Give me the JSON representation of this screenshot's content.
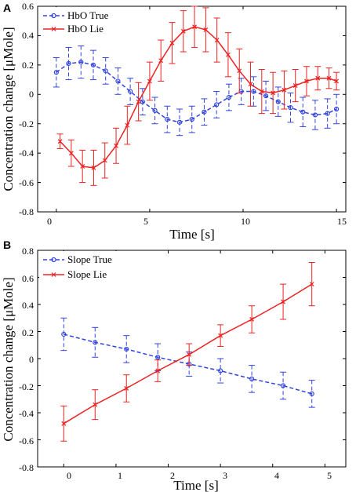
{
  "chart_data": [
    {
      "type": "line",
      "panel_label": "A",
      "xlabel": "Time [s]",
      "ylabel": "Concentration change [μMole]",
      "xlim": [
        -1,
        15.5
      ],
      "ylim": [
        -0.8,
        0.6
      ],
      "xticks": [
        0,
        5,
        10,
        15
      ],
      "yticks": [
        -0.8,
        -0.6,
        -0.4,
        -0.2,
        0,
        0.2,
        0.4,
        0.6
      ],
      "xtick_labels": [
        "0",
        "5",
        "10",
        "15"
      ],
      "ytick_labels": [
        "-0.8",
        "-0.6",
        "-0.4",
        "-0.2",
        "0",
        "0.2",
        "0.4",
        "0.6"
      ],
      "grid": false,
      "legend_position": "top-left",
      "series": [
        {
          "name": "HbO True",
          "color": "#3344dd",
          "line_style": "dashed",
          "marker": "circle",
          "x": [
            0,
            0.66,
            1.32,
            1.98,
            2.64,
            3.3,
            3.96,
            4.62,
            5.28,
            5.94,
            6.6,
            7.26,
            7.92,
            8.58,
            9.24,
            9.9,
            10.56,
            11.22,
            11.88,
            12.54,
            13.2,
            13.86,
            14.52,
            15
          ],
          "y": [
            0.15,
            0.21,
            0.22,
            0.2,
            0.16,
            0.09,
            0.02,
            -0.05,
            -0.11,
            -0.17,
            -0.19,
            -0.17,
            -0.12,
            -0.07,
            -0.02,
            0.02,
            0.02,
            -0.01,
            -0.05,
            -0.09,
            -0.12,
            -0.14,
            -0.13,
            -0.1
          ],
          "error": [
            0.1,
            0.11,
            0.11,
            0.1,
            0.09,
            0.09,
            0.09,
            0.09,
            0.09,
            0.09,
            0.09,
            0.09,
            0.09,
            0.09,
            0.09,
            0.09,
            0.1,
            0.1,
            0.1,
            0.1,
            0.1,
            0.1,
            0.1,
            0.1
          ]
        },
        {
          "name": "HbO Lie",
          "color": "#ee2222",
          "line_style": "solid",
          "marker": "x",
          "x": [
            0.2,
            0.8,
            1.4,
            2.0,
            2.6,
            3.2,
            3.8,
            4.4,
            5.0,
            5.6,
            6.2,
            6.8,
            7.4,
            8.0,
            8.6,
            9.2,
            9.8,
            10.4,
            11.0,
            11.6,
            12.2,
            12.8,
            13.4,
            14.0,
            14.6,
            15.0
          ],
          "y": [
            -0.32,
            -0.4,
            -0.49,
            -0.5,
            -0.45,
            -0.35,
            -0.21,
            -0.05,
            0.09,
            0.23,
            0.35,
            0.43,
            0.46,
            0.44,
            0.37,
            0.27,
            0.16,
            0.07,
            0.02,
            0.01,
            0.03,
            0.06,
            0.09,
            0.11,
            0.11,
            0.09
          ],
          "error": [
            0.05,
            0.09,
            0.11,
            0.12,
            0.12,
            0.12,
            0.13,
            0.13,
            0.13,
            0.14,
            0.14,
            0.14,
            0.14,
            0.15,
            0.15,
            0.15,
            0.15,
            0.15,
            0.15,
            0.14,
            0.13,
            0.11,
            0.1,
            0.08,
            0.07,
            0.06
          ]
        }
      ]
    },
    {
      "type": "line",
      "panel_label": "B",
      "xlabel": "Time [s]",
      "ylabel": "Concentration change [μMole]",
      "xlim": [
        -0.5,
        5.4
      ],
      "ylim": [
        -0.8,
        0.8
      ],
      "xticks": [
        0,
        1,
        2,
        3,
        4,
        5
      ],
      "yticks": [
        -0.8,
        -0.6,
        -0.4,
        -0.2,
        0,
        0.2,
        0.4,
        0.6,
        0.8
      ],
      "xtick_labels": [
        "0",
        "1",
        "2",
        "3",
        "4",
        "5"
      ],
      "ytick_labels": [
        "-0.8",
        "-0.6",
        "-0.4",
        "-0.2",
        "0",
        "0.2",
        "0.4",
        "0.6",
        "0.8"
      ],
      "grid": false,
      "legend_position": "top-left",
      "series": [
        {
          "name": "Slope True",
          "color": "#3344dd",
          "line_style": "dashed",
          "marker": "circle",
          "x": [
            0,
            0.6,
            1.2,
            1.8,
            2.4,
            3.0,
            3.6,
            4.2,
            4.75
          ],
          "y": [
            0.18,
            0.12,
            0.07,
            0.01,
            -0.04,
            -0.09,
            -0.15,
            -0.2,
            -0.26
          ],
          "error": [
            0.12,
            0.11,
            0.1,
            0.1,
            0.09,
            0.09,
            0.1,
            0.1,
            0.1
          ]
        },
        {
          "name": "Slope Lie",
          "color": "#ee2222",
          "line_style": "solid",
          "marker": "x",
          "x": [
            0,
            0.6,
            1.2,
            1.8,
            2.4,
            3.0,
            3.6,
            4.2,
            4.75
          ],
          "y": [
            -0.48,
            -0.34,
            -0.22,
            -0.09,
            0.03,
            0.17,
            0.29,
            0.42,
            0.55
          ],
          "error": [
            0.13,
            0.11,
            0.1,
            0.08,
            0.08,
            0.08,
            0.1,
            0.13,
            0.16
          ]
        }
      ]
    }
  ]
}
